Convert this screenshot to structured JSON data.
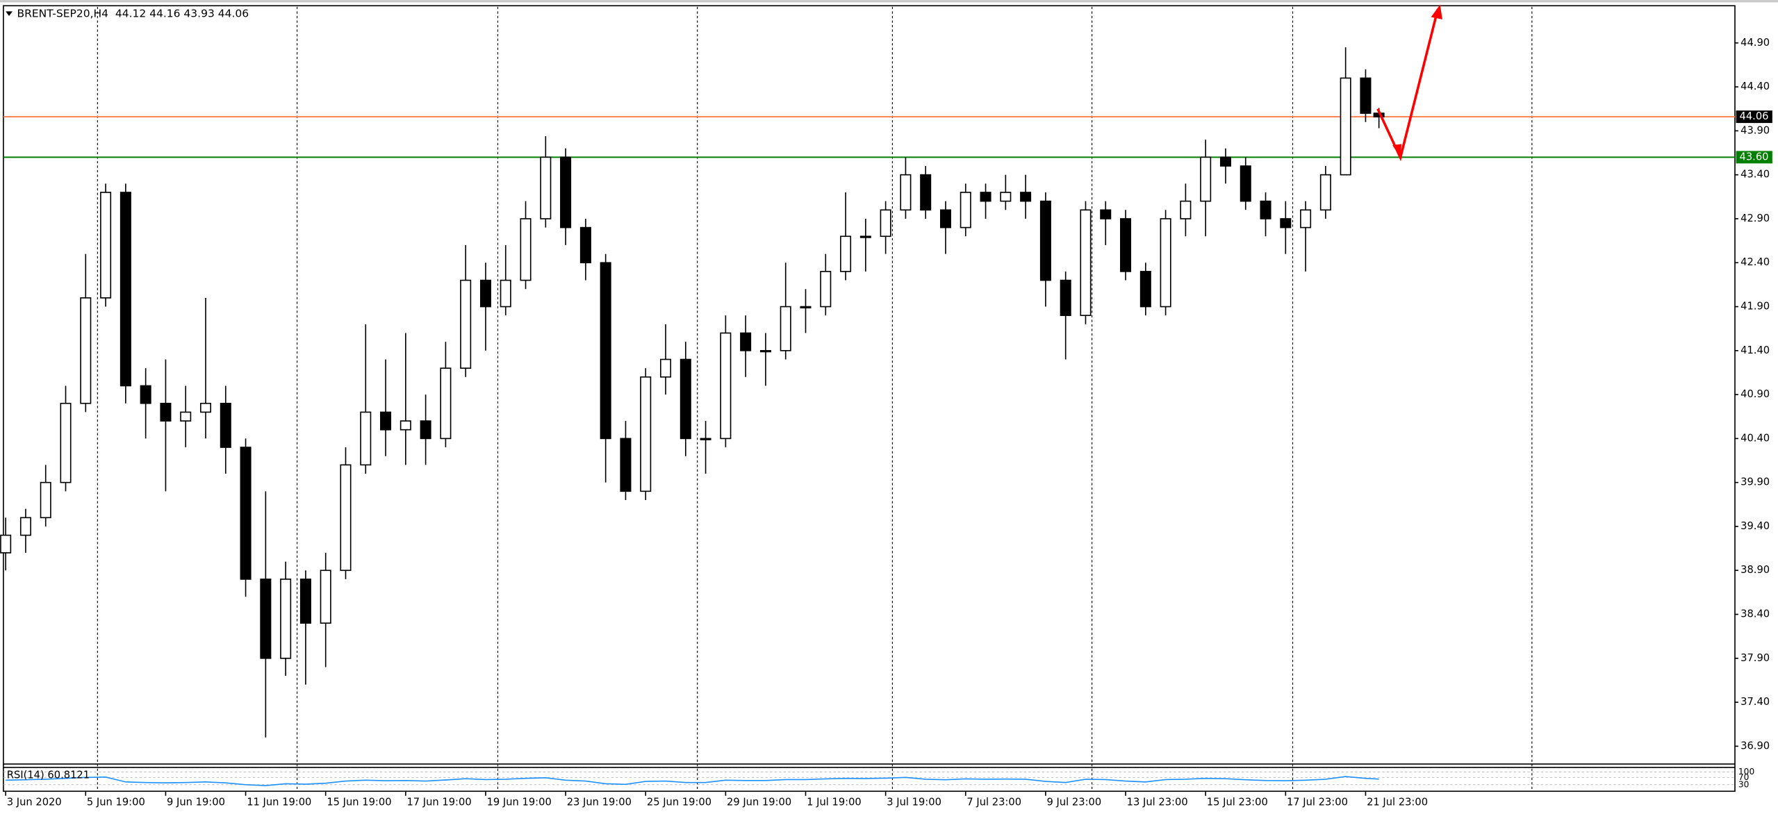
{
  "chart_data": {
    "type": "candlestick",
    "title": "BRENT-SEP20,H4",
    "quote": "44.12 44.16 43.93 44.06",
    "up_color": "#ffffff",
    "down_color": "#000000",
    "x": [
      0,
      3,
      6,
      9,
      12,
      15,
      18,
      21,
      24,
      27,
      30,
      33,
      36,
      39,
      42,
      45,
      48,
      51,
      54,
      57,
      60,
      63,
      66,
      69,
      72,
      75,
      78,
      81,
      84,
      87,
      90,
      93,
      96,
      99,
      102,
      105,
      108,
      111,
      114,
      117,
      120,
      123,
      126,
      129,
      132,
      135,
      138,
      141,
      144,
      147,
      150,
      153,
      156,
      159,
      162,
      165,
      168,
      171,
      174,
      177,
      180,
      183,
      186,
      189,
      192,
      195,
      198,
      201,
      204,
      206
    ],
    "open": [
      39.1,
      39.3,
      39.5,
      39.9,
      40.8,
      42.0,
      43.2,
      41.0,
      40.8,
      40.6,
      40.7,
      40.8,
      40.3,
      38.8,
      37.9,
      38.8,
      38.3,
      38.9,
      40.1,
      40.7,
      40.5,
      40.6,
      40.4,
      41.2,
      42.2,
      41.9,
      42.2,
      42.9,
      43.6,
      42.8,
      42.4,
      40.4,
      39.8,
      41.1,
      41.3,
      40.4,
      40.4,
      41.6,
      41.4,
      41.4,
      41.9,
      41.9,
      42.3,
      42.7,
      42.7,
      43.0,
      43.4,
      43.0,
      42.8,
      43.2,
      43.1,
      43.2,
      43.1,
      42.2,
      41.8,
      43.0,
      42.9,
      42.3,
      41.9,
      42.9,
      43.1,
      43.6,
      43.5,
      43.1,
      42.9,
      42.8,
      43.0,
      43.4,
      44.5,
      44.1
    ],
    "high": [
      39.5,
      39.6,
      40.1,
      41.0,
      42.5,
      43.3,
      43.3,
      41.2,
      41.3,
      41.0,
      42.0,
      41.0,
      40.4,
      39.8,
      39.0,
      38.9,
      39.1,
      40.3,
      41.7,
      41.3,
      41.6,
      40.9,
      41.5,
      42.6,
      42.4,
      42.6,
      43.1,
      43.84,
      43.7,
      42.9,
      42.5,
      40.6,
      41.2,
      41.7,
      41.5,
      40.6,
      41.8,
      41.8,
      41.6,
      42.4,
      42.1,
      42.5,
      43.2,
      42.9,
      43.1,
      43.6,
      43.5,
      43.1,
      43.3,
      43.3,
      43.4,
      43.4,
      43.2,
      42.3,
      43.1,
      43.1,
      43.0,
      42.4,
      43.0,
      43.3,
      43.8,
      43.7,
      43.6,
      43.2,
      43.1,
      43.1,
      43.5,
      44.85,
      44.6,
      44.16
    ],
    "low": [
      38.9,
      39.1,
      39.4,
      39.8,
      40.7,
      41.9,
      40.8,
      40.4,
      39.8,
      40.3,
      40.4,
      40.0,
      38.6,
      37.0,
      37.7,
      37.6,
      37.8,
      38.8,
      40.0,
      40.2,
      40.1,
      40.1,
      40.3,
      41.1,
      41.4,
      41.8,
      42.1,
      42.8,
      42.6,
      42.2,
      39.9,
      39.7,
      39.7,
      40.9,
      40.2,
      40.0,
      40.3,
      41.1,
      41.0,
      41.3,
      41.6,
      41.8,
      42.2,
      42.3,
      42.5,
      42.9,
      42.9,
      42.5,
      42.7,
      42.9,
      43.0,
      42.9,
      41.9,
      41.3,
      41.7,
      42.6,
      42.2,
      41.8,
      41.8,
      42.7,
      42.7,
      43.3,
      43.0,
      42.7,
      42.5,
      42.3,
      42.9,
      43.4,
      44.0,
      43.93
    ],
    "close": [
      39.3,
      39.5,
      39.9,
      40.8,
      42.0,
      43.2,
      41.0,
      40.8,
      40.6,
      40.7,
      40.8,
      40.3,
      38.8,
      37.9,
      38.8,
      38.3,
      38.9,
      40.1,
      40.7,
      40.5,
      40.6,
      40.4,
      41.2,
      42.2,
      41.9,
      42.2,
      42.9,
      43.6,
      42.8,
      42.4,
      40.4,
      39.8,
      41.1,
      41.3,
      40.4,
      40.4,
      41.6,
      41.4,
      41.4,
      41.9,
      41.9,
      42.3,
      42.7,
      42.7,
      43.0,
      43.4,
      43.0,
      42.8,
      43.2,
      43.1,
      43.2,
      43.1,
      42.2,
      41.8,
      43.0,
      42.9,
      42.3,
      41.9,
      42.9,
      43.1,
      43.6,
      43.5,
      43.1,
      42.9,
      42.8,
      43.0,
      43.4,
      44.5,
      44.1,
      44.06
    ],
    "xlim": [
      -0.34,
      259.4
    ],
    "xticks": [
      {
        "value": 0,
        "label": "3 Jun 2020"
      },
      {
        "value": 12,
        "label": "5 Jun 19:00"
      },
      {
        "value": 24,
        "label": "9 Jun 19:00"
      },
      {
        "value": 36,
        "label": "11 Jun 19:00"
      },
      {
        "value": 48,
        "label": "15 Jun 19:00"
      },
      {
        "value": 60,
        "label": "17 Jun 19:00"
      },
      {
        "value": 72,
        "label": "19 Jun 19:00"
      },
      {
        "value": 84,
        "label": "23 Jun 19:00"
      },
      {
        "value": 96,
        "label": "25 Jun 19:00"
      },
      {
        "value": 108,
        "label": "29 Jun 19:00"
      },
      {
        "value": 120,
        "label": "1 Jul 19:00"
      },
      {
        "value": 132,
        "label": "3 Jul 19:00"
      },
      {
        "value": 144,
        "label": "7 Jul 23:00"
      },
      {
        "value": 156,
        "label": "9 Jul 23:00"
      },
      {
        "value": 168,
        "label": "13 Jul 23:00"
      },
      {
        "value": 180,
        "label": "15 Jul 23:00"
      },
      {
        "value": 192,
        "label": "17 Jul 23:00"
      },
      {
        "value": 204,
        "label": "21 Jul 23:00"
      }
    ],
    "ylim": [
      36.71,
      45.31
    ],
    "yticks": [
      {
        "value": 36.9,
        "label": "36.90"
      },
      {
        "value": 37.4,
        "label": "37.40"
      },
      {
        "value": 37.9,
        "label": "37.90"
      },
      {
        "value": 38.4,
        "label": "38.40"
      },
      {
        "value": 38.9,
        "label": "38.90"
      },
      {
        "value": 39.4,
        "label": "39.40"
      },
      {
        "value": 39.9,
        "label": "39.90"
      },
      {
        "value": 40.4,
        "label": "40.40"
      },
      {
        "value": 40.9,
        "label": "40.90"
      },
      {
        "value": 41.4,
        "label": "41.40"
      },
      {
        "value": 41.9,
        "label": "41.90"
      },
      {
        "value": 42.4,
        "label": "42.40"
      },
      {
        "value": 42.9,
        "label": "42.90"
      },
      {
        "value": 43.4,
        "label": "43.40"
      },
      {
        "value": 43.9,
        "label": "43.90"
      },
      {
        "value": 44.4,
        "label": "44.40"
      },
      {
        "value": 44.9,
        "label": "44.90"
      }
    ],
    "levels": [
      {
        "value": 43.6,
        "label": "43.60",
        "color": "#008000",
        "line_color": "#008000"
      },
      {
        "value": 44.06,
        "label": "44.06",
        "color": "#000000",
        "line_color": "#ff7f50"
      }
    ],
    "indicator": {
      "type": "line",
      "label": "RSI(14) 60.8121",
      "color": "#1e90ff",
      "values": [
        55,
        57,
        60,
        65,
        70,
        72,
        45,
        42,
        40,
        42,
        45,
        40,
        30,
        25,
        35,
        33,
        38,
        50,
        55,
        52,
        53,
        50,
        56,
        63,
        58,
        60,
        65,
        68,
        55,
        50,
        35,
        32,
        48,
        50,
        42,
        42,
        55,
        53,
        53,
        58,
        58,
        62,
        65,
        64,
        66,
        70,
        60,
        57,
        62,
        60,
        61,
        60,
        48,
        42,
        60,
        58,
        50,
        45,
        58,
        60,
        65,
        63,
        57,
        53,
        52,
        55,
        60,
        75,
        65,
        60.8121
      ],
      "ylim": [
        0,
        100
      ],
      "yticks": [
        30,
        70,
        100
      ]
    }
  }
}
